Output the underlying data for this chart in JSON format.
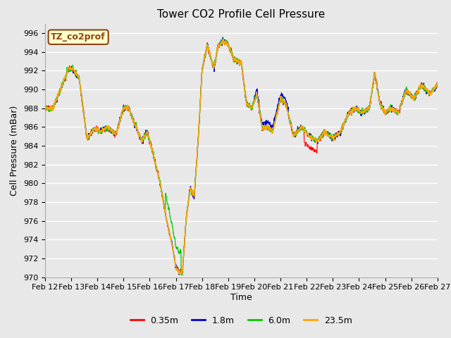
{
  "title": "Tower CO2 Profile Cell Pressure",
  "xlabel": "Time",
  "ylabel": "Cell Pressure (mBar)",
  "ylim": [
    970,
    997
  ],
  "xlim": [
    0,
    15
  ],
  "bg_color": "#e8e8e8",
  "grid_color": "#ffffff",
  "colors": [
    "#ff0000",
    "#0000cc",
    "#00cc00",
    "#ffa500"
  ],
  "series_names": [
    "0.35m",
    "1.8m",
    "6.0m",
    "23.5m"
  ],
  "x_tick_labels": [
    "Feb 12",
    "Feb 13",
    "Feb 14",
    "Feb 15",
    "Feb 16",
    "Feb 17",
    "Feb 18",
    "Feb 19",
    "Feb 20",
    "Feb 21",
    "Feb 22",
    "Feb 23",
    "Feb 24",
    "Feb 25",
    "Feb 26",
    "Feb 27"
  ],
  "ytick_start": 970,
  "ytick_end": 996,
  "ytick_step": 2,
  "legend_box_text": "TZ_co2prof",
  "legend_box_facecolor": "#ffffcc",
  "legend_box_edgecolor": "#8B4513",
  "legend_box_textcolor": "#8B4513",
  "title_fontsize": 11,
  "axis_label_fontsize": 9,
  "tick_fontsize": 8
}
